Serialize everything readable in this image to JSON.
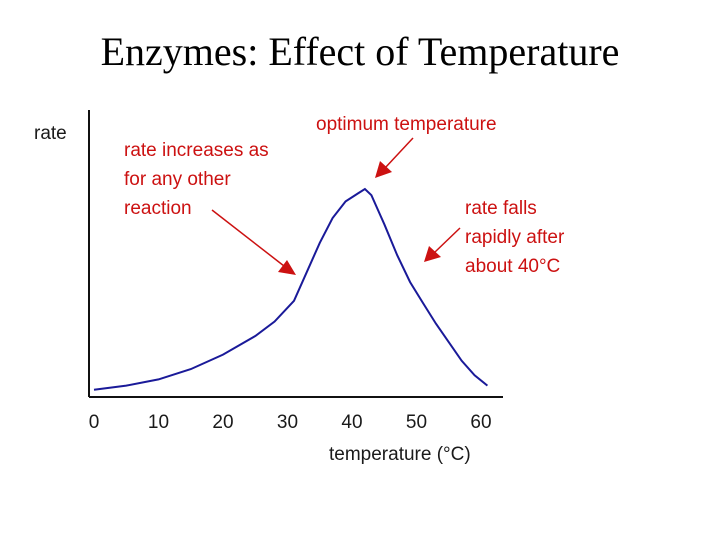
{
  "title": "Enzymes: Effect of Temperature",
  "chart_data": {
    "type": "line",
    "ylabel": "rate",
    "xlabel": "temperature (°C)",
    "xlim": [
      0,
      63
    ],
    "x_ticks": [
      0,
      10,
      20,
      30,
      40,
      50,
      60
    ],
    "series": [
      {
        "x": [
          0,
          5,
          10,
          15,
          20,
          25,
          28,
          31,
          33,
          35,
          37,
          39,
          41,
          42,
          43,
          45,
          47,
          49,
          51,
          53,
          55,
          57,
          59,
          61
        ],
        "y": [
          3,
          5,
          8,
          13,
          20,
          29,
          36,
          46,
          60,
          74,
          86,
          94,
          98,
          100,
          97,
          83,
          68,
          55,
          45,
          35,
          26,
          17,
          10,
          5
        ]
      }
    ],
    "annotations": [
      {
        "lines": [
          "optimum temperature"
        ]
      },
      {
        "lines": [
          "rate increases as",
          "for any other",
          "reaction"
        ]
      },
      {
        "lines": [
          "rate falls",
          "rapidly after",
          "about 40°C"
        ]
      }
    ],
    "colors": {
      "line": "#1a1a99",
      "annotation": "#cc1111",
      "axis": "#111111"
    }
  }
}
